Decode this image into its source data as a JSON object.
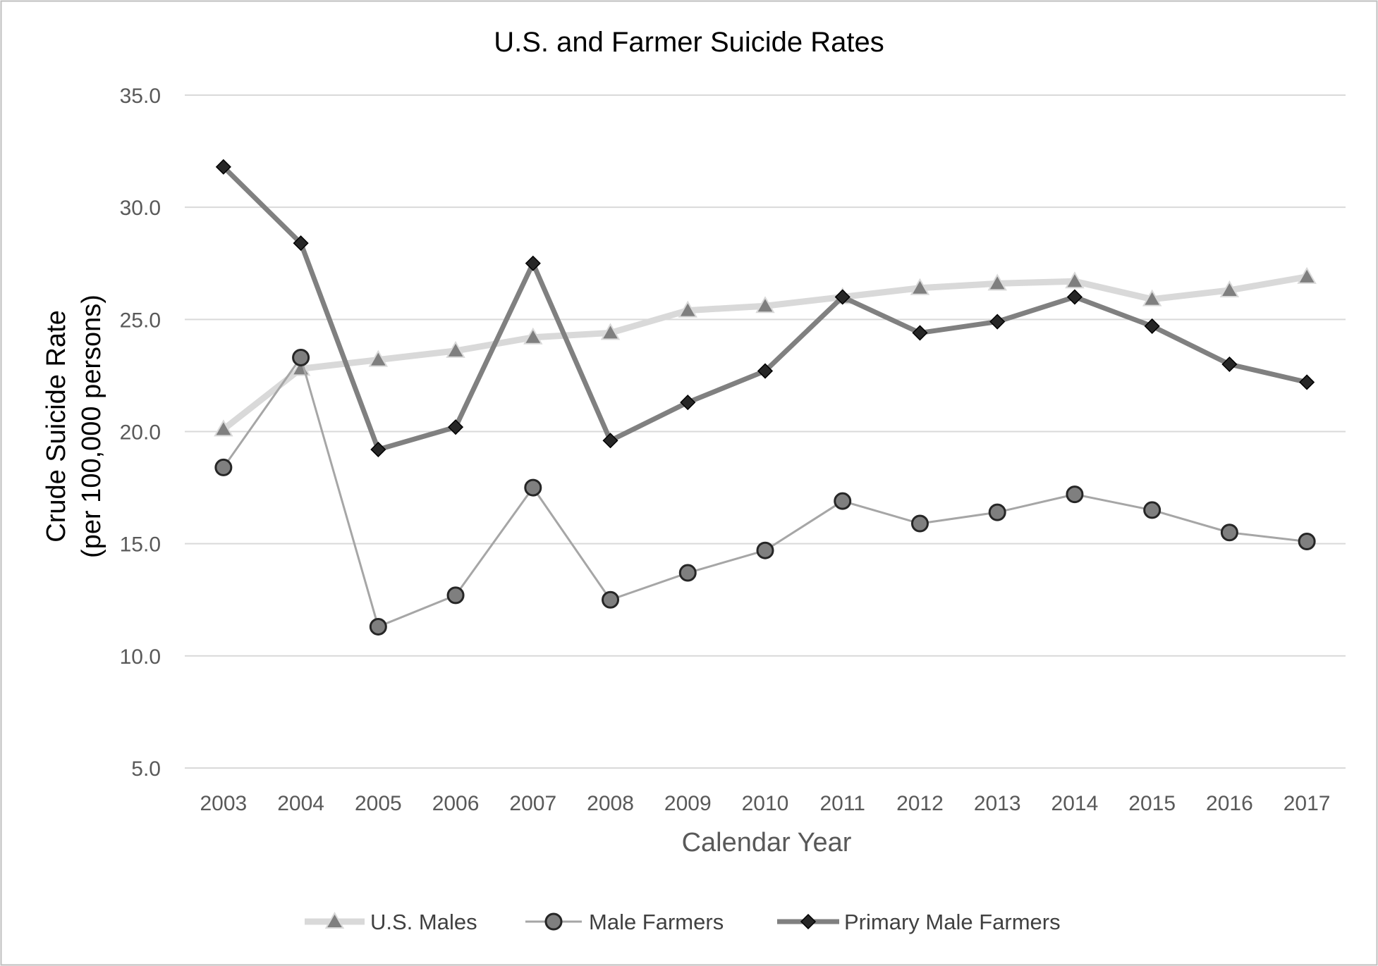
{
  "chart_data": {
    "type": "line",
    "title": "U.S. and Farmer Suicide Rates",
    "xlabel": "Calendar Year",
    "ylabel_line1": "Crude Suicide Rate",
    "ylabel_line2": "(per 100,000 persons)",
    "ylim": [
      5,
      35
    ],
    "yticks": [
      "5.0",
      "10.0",
      "15.0",
      "20.0",
      "25.0",
      "30.0",
      "35.0"
    ],
    "categories": [
      "2003",
      "2004",
      "2005",
      "2006",
      "2007",
      "2008",
      "2009",
      "2010",
      "2011",
      "2012",
      "2013",
      "2014",
      "2015",
      "2016",
      "2017"
    ],
    "grid": true,
    "legend_position": "bottom",
    "series": [
      {
        "name": "U.S. Males",
        "marker": "triangle",
        "line_color": "#d9d9d9",
        "marker_color": "#7f7f7f",
        "values": [
          20.1,
          22.8,
          23.2,
          23.6,
          24.2,
          24.4,
          25.4,
          25.6,
          26.0,
          26.4,
          26.6,
          26.7,
          25.9,
          26.3,
          26.9
        ]
      },
      {
        "name": "Male Farmers",
        "marker": "circle",
        "line_color": "#a6a6a6",
        "marker_color": "#7f7f7f",
        "values": [
          18.4,
          23.3,
          11.3,
          12.7,
          17.5,
          12.5,
          13.7,
          14.7,
          16.9,
          15.9,
          16.4,
          17.2,
          16.5,
          15.5,
          15.1
        ]
      },
      {
        "name": "Primary Male Farmers",
        "marker": "diamond",
        "line_color": "#808080",
        "marker_color": "#262626",
        "values": [
          31.8,
          28.4,
          19.2,
          20.2,
          27.5,
          19.6,
          21.3,
          22.7,
          26.0,
          24.4,
          24.9,
          26.0,
          24.7,
          23.0,
          22.2
        ]
      }
    ]
  }
}
